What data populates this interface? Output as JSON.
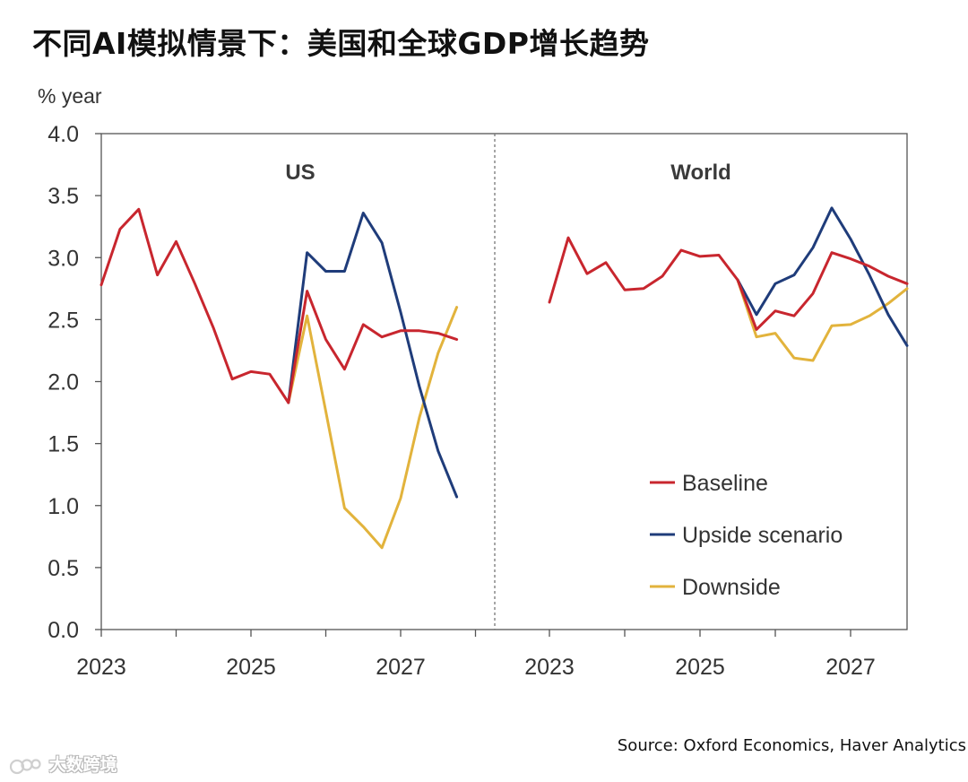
{
  "title": "不同AI模拟情景下：美国和全球GDP增长趋势",
  "source": "Source: Oxford Economics, Haver Analytics",
  "watermark": "大数跨境",
  "colors": {
    "baseline": "#c8262e",
    "upside": "#1f3c7a",
    "downside": "#e2b33c",
    "axis": "#555555",
    "text": "#333333"
  },
  "chart_data": {
    "type": "line",
    "ylabel": "% year",
    "ylim": [
      0,
      4
    ],
    "yticks": [
      "0.0",
      "0.5",
      "1.0",
      "1.5",
      "2.0",
      "2.5",
      "3.0",
      "3.5",
      "4.0"
    ],
    "xticks": [
      "2023",
      "2025",
      "2027"
    ],
    "legend": {
      "placement": "lower-right",
      "entries": [
        {
          "key": "baseline",
          "label": "Baseline"
        },
        {
          "key": "upside",
          "label": "Upside scenario"
        },
        {
          "key": "downside",
          "label": "Downside"
        }
      ]
    },
    "panels": [
      {
        "name": "US",
        "series": [
          {
            "key": "baseline",
            "name": "Baseline",
            "x": [
              2023.0,
              2023.25,
              2023.5,
              2023.75,
              2024.0,
              2024.25,
              2024.5,
              2024.75,
              2025.0,
              2025.25,
              2025.5,
              2025.75,
              2026.0,
              2026.25,
              2026.5,
              2026.75,
              2027.0,
              2027.25,
              2027.5,
              2027.75
            ],
            "values": [
              2.78,
              3.23,
              3.39,
              2.86,
              3.13,
              2.79,
              2.43,
              2.02,
              2.08,
              2.06,
              1.83,
              2.73,
              2.34,
              2.1,
              2.46,
              2.36,
              2.41,
              2.41,
              2.39,
              2.34
            ]
          },
          {
            "key": "upside",
            "name": "Upside scenario",
            "x": [
              2025.5,
              2025.75,
              2026.0,
              2026.25,
              2026.5,
              2026.75,
              2027.0,
              2027.25,
              2027.5,
              2027.75
            ],
            "values": [
              1.83,
              3.04,
              2.89,
              2.89,
              3.36,
              3.12,
              2.56,
              1.96,
              1.44,
              1.07
            ]
          },
          {
            "key": "downside",
            "name": "Downside",
            "x": [
              2025.5,
              2025.75,
              2026.0,
              2026.25,
              2026.5,
              2026.75,
              2027.0,
              2027.25,
              2027.5,
              2027.75
            ],
            "values": [
              1.83,
              2.53,
              1.76,
              0.98,
              0.83,
              0.66,
              1.06,
              1.71,
              2.23,
              2.6
            ]
          }
        ]
      },
      {
        "name": "World",
        "series": [
          {
            "key": "baseline",
            "name": "Baseline",
            "x": [
              2023.0,
              2023.25,
              2023.5,
              2023.75,
              2024.0,
              2024.25,
              2024.5,
              2024.75,
              2025.0,
              2025.25,
              2025.5,
              2025.75,
              2026.0,
              2026.25,
              2026.5,
              2026.75,
              2027.0,
              2027.25,
              2027.5,
              2027.75
            ],
            "values": [
              2.64,
              3.16,
              2.87,
              2.96,
              2.74,
              2.75,
              2.85,
              3.06,
              3.01,
              3.02,
              2.82,
              2.42,
              2.57,
              2.53,
              2.71,
              3.04,
              2.99,
              2.93,
              2.85,
              2.79
            ]
          },
          {
            "key": "upside",
            "name": "Upside scenario",
            "x": [
              2025.5,
              2025.75,
              2026.0,
              2026.25,
              2026.5,
              2026.75,
              2027.0,
              2027.25,
              2027.5,
              2027.75
            ],
            "values": [
              2.82,
              2.54,
              2.79,
              2.86,
              3.08,
              3.4,
              3.15,
              2.86,
              2.54,
              2.29
            ]
          },
          {
            "key": "downside",
            "name": "Downside",
            "x": [
              2025.5,
              2025.75,
              2026.0,
              2026.25,
              2026.5,
              2026.75,
              2027.0,
              2027.25,
              2027.5,
              2027.75
            ],
            "values": [
              2.82,
              2.36,
              2.39,
              2.19,
              2.17,
              2.45,
              2.46,
              2.53,
              2.63,
              2.75
            ]
          }
        ]
      }
    ]
  }
}
